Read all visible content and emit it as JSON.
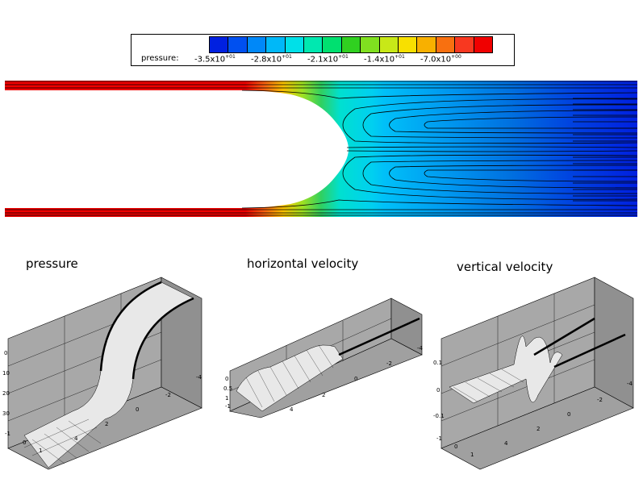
{
  "legend": {
    "title": "pressure:",
    "labels": [
      {
        "mantissa": "-3.5x10",
        "exp": "+01"
      },
      {
        "mantissa": "-2.8x10",
        "exp": "+01"
      },
      {
        "mantissa": "-2.1x10",
        "exp": "+01"
      },
      {
        "mantissa": "-1.4x10",
        "exp": "+01"
      },
      {
        "mantissa": "-7.0x10",
        "exp": "+00"
      }
    ],
    "colors": [
      "#0020e0",
      "#0050f0",
      "#0088f8",
      "#00b8f8",
      "#00e0e8",
      "#00e8b0",
      "#00e070",
      "#30d020",
      "#80e020",
      "#c8e818",
      "#f8e000",
      "#f8b000",
      "#f87010",
      "#f83820",
      "#f00000"
    ]
  },
  "panels": {
    "pressure": {
      "title": "pressure",
      "ticks": [
        "0",
        "10",
        "20",
        "30",
        "-1",
        "0",
        "1",
        "4",
        "2",
        "0",
        "-2",
        "-4"
      ]
    },
    "horizontal": {
      "title": "horizontal velocity",
      "ticks": [
        "0",
        "0.5",
        "1",
        "-1",
        "4",
        "2",
        "0",
        "-2",
        "-4"
      ]
    },
    "vertical": {
      "title": "vertical velocity",
      "ticks": [
        "0.1",
        "0",
        "-0.1",
        "-1",
        "0",
        "1",
        "4",
        "2",
        "0",
        "-2",
        "-4"
      ]
    }
  }
}
